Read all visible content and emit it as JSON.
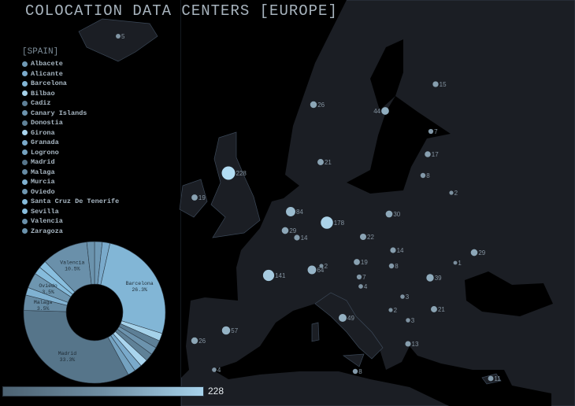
{
  "title": "COLOCATION DATA CENTERS [EUROPE]",
  "legend": {
    "title": "[SPAIN]",
    "items": [
      {
        "label": "Albacete",
        "value": 1,
        "color": "#6f99b5"
      },
      {
        "label": "Alicante",
        "value": 1,
        "color": "#7aaacb"
      },
      {
        "label": "Barcelona",
        "value": 15,
        "color": "#82b6d6"
      },
      {
        "label": "Bilbao",
        "value": 1,
        "color": "#a5d2ea"
      },
      {
        "label": "Cadiz",
        "value": 1,
        "color": "#5d7f96"
      },
      {
        "label": "Canary Islands",
        "value": 1,
        "color": "#6c93ad"
      },
      {
        "label": "Donostia",
        "value": 1,
        "color": "#5f8197"
      },
      {
        "label": "Girona",
        "value": 1,
        "color": "#a9d5ee"
      },
      {
        "label": "Granada",
        "value": 1,
        "color": "#7aaacb"
      },
      {
        "label": "Logrono",
        "value": 1,
        "color": "#74a2c0"
      },
      {
        "label": "Madrid",
        "value": 19,
        "color": "#56758a"
      },
      {
        "label": "Malaga",
        "value": 2,
        "color": "#668ba4"
      },
      {
        "label": "Murcia",
        "value": 1,
        "color": "#80b2d2"
      },
      {
        "label": "Oviedo",
        "value": 2,
        "color": "#6e96b0"
      },
      {
        "label": "Santa Cruz De Tenerife",
        "value": 1,
        "color": "#86bcdc"
      },
      {
        "label": "Sevilla",
        "value": 1,
        "color": "#88bede"
      },
      {
        "label": "Valencia",
        "value": 6,
        "color": "#6a90aa"
      },
      {
        "label": "Zaragoza",
        "value": 1,
        "color": "#6b93ad"
      }
    ]
  },
  "pie_labels": [
    {
      "city": "Barcelona",
      "pct": "26.3%"
    },
    {
      "city": "Madrid",
      "pct": "33.3%"
    },
    {
      "city": "Malaga",
      "pct": "3.5%"
    },
    {
      "city": "Oviedo",
      "pct": "3.5%"
    },
    {
      "city": "Valencia",
      "pct": "10.5%"
    }
  ],
  "scale": {
    "max_label": "228",
    "min_color": "#4c6272",
    "max_color": "#a7d3ec"
  },
  "markers": [
    {
      "country": "Iceland",
      "value": 5
    },
    {
      "country": "Norway",
      "value": 26
    },
    {
      "country": "Sweden",
      "value": 44
    },
    {
      "country": "Finland",
      "value": 15
    },
    {
      "country": "Estonia",
      "value": 7
    },
    {
      "country": "Latvia",
      "value": 17
    },
    {
      "country": "Lithuania",
      "value": 8
    },
    {
      "country": "Belarus",
      "value": 2
    },
    {
      "country": "Denmark",
      "value": 21
    },
    {
      "country": "United Kingdom",
      "value": 228
    },
    {
      "country": "Ireland",
      "value": 19
    },
    {
      "country": "Netherlands",
      "value": 84
    },
    {
      "country": "Germany",
      "value": 178
    },
    {
      "country": "Belgium",
      "value": 29
    },
    {
      "country": "Luxembourg",
      "value": 14
    },
    {
      "country": "Poland",
      "value": 30
    },
    {
      "country": "Czech Republic",
      "value": 22
    },
    {
      "country": "Slovakia",
      "value": 14
    },
    {
      "country": "Austria",
      "value": 19
    },
    {
      "country": "Hungary",
      "value": 8
    },
    {
      "country": "Switzerland",
      "value": 64
    },
    {
      "country": "Liechtenstein",
      "value": 2
    },
    {
      "country": "France",
      "value": 141
    },
    {
      "country": "Ukraine",
      "value": 29
    },
    {
      "country": "Moldova",
      "value": 1
    },
    {
      "country": "Romania",
      "value": 39
    },
    {
      "country": "Slovenia",
      "value": 7
    },
    {
      "country": "Croatia",
      "value": 4
    },
    {
      "country": "Serbia",
      "value": 3
    },
    {
      "country": "Bulgaria",
      "value": 21
    },
    {
      "country": "Italy",
      "value": 49
    },
    {
      "country": "Montenegro",
      "value": 2
    },
    {
      "country": "Macedonia",
      "value": 3
    },
    {
      "country": "Spain",
      "value": 57
    },
    {
      "country": "Portugal",
      "value": 26
    },
    {
      "country": "Greece",
      "value": 13
    },
    {
      "country": "Gibraltar",
      "value": 4
    },
    {
      "country": "Malta",
      "value": 8
    },
    {
      "country": "Cyprus",
      "value": 11
    }
  ]
}
